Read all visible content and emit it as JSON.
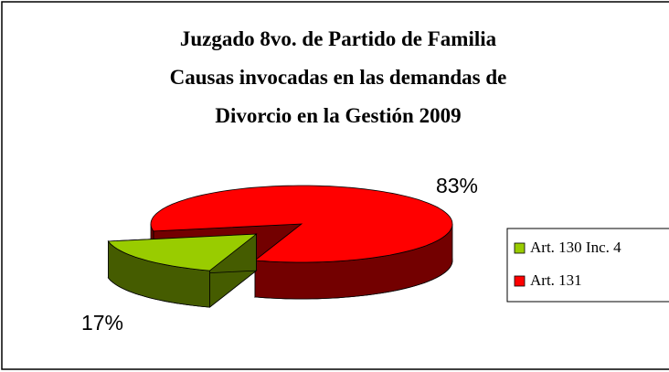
{
  "chart_data": {
    "type": "pie",
    "title": [
      "Juzgado 8vo. de Partido de Familia",
      "Causas  invocadas en las demandas  de",
      "Divorcio en la Gestión 2009"
    ],
    "categories": [
      "Art. 130 Inc. 4",
      "Art. 131"
    ],
    "values": [
      17,
      83
    ],
    "value_labels": [
      "17%",
      "83%"
    ],
    "colors": [
      "#99cc00",
      "#ff0000"
    ],
    "legend": "right",
    "style": "3d",
    "exploded": [
      true,
      false
    ]
  }
}
